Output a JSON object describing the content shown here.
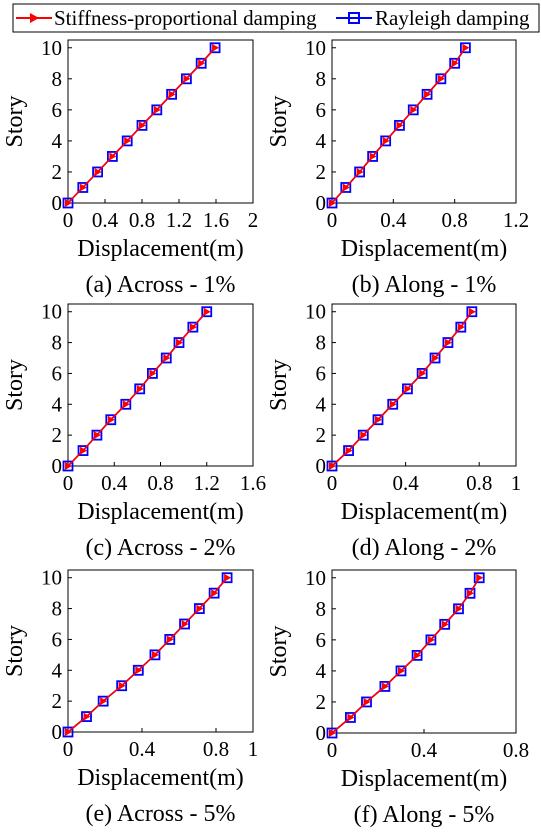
{
  "legend": {
    "entries": [
      {
        "label": "Stiffness-proportional damping",
        "color": "#ff0000",
        "marker": "right-triangle"
      },
      {
        "label": "Rayleigh damping",
        "color": "#0000ff",
        "marker": "square"
      }
    ],
    "placement": "top"
  },
  "chart_data": [
    {
      "type": "line",
      "caption": "(a) Across - 1%",
      "xlabel": "Displacement(m)",
      "ylabel": "Story",
      "xlim": [
        0,
        2
      ],
      "ylim": [
        0,
        10.5
      ],
      "xticks": [
        0,
        0.4,
        0.8,
        1.2,
        1.6,
        2
      ],
      "xticklabels": [
        "0",
        "0.4",
        "0.8",
        "1.2",
        "1.6",
        "2"
      ],
      "yticks": [
        0,
        2,
        4,
        6,
        8,
        10
      ],
      "yticklabels": [
        "0",
        "2",
        "4",
        "6",
        "8",
        "10"
      ],
      "grid": false,
      "series": [
        {
          "name": "Stiffness-proportional damping",
          "x": [
            0,
            0.16,
            0.32,
            0.48,
            0.64,
            0.8,
            0.96,
            1.12,
            1.28,
            1.44,
            1.59
          ],
          "y": [
            0,
            1,
            2,
            3,
            4,
            5,
            6,
            7,
            8,
            9,
            10
          ]
        },
        {
          "name": "Rayleigh damping",
          "x": [
            0,
            0.16,
            0.32,
            0.48,
            0.64,
            0.8,
            0.96,
            1.12,
            1.28,
            1.44,
            1.59
          ],
          "y": [
            0,
            1,
            2,
            3,
            4,
            5,
            6,
            7,
            8,
            9,
            10
          ]
        }
      ]
    },
    {
      "type": "line",
      "caption": "(b) Along - 1%",
      "xlabel": "Displacement(m)",
      "ylabel": "Story",
      "xlim": [
        0,
        1.2
      ],
      "ylim": [
        0,
        10.5
      ],
      "xticks": [
        0,
        0.4,
        0.8,
        1.2
      ],
      "xticklabels": [
        "0",
        "0.4",
        "0.8",
        "1.2"
      ],
      "yticks": [
        0,
        2,
        4,
        6,
        8,
        10
      ],
      "yticklabels": [
        "0",
        "2",
        "4",
        "6",
        "8",
        "10"
      ],
      "grid": false,
      "series": [
        {
          "name": "Stiffness-proportional damping",
          "x": [
            0,
            0.09,
            0.18,
            0.265,
            0.35,
            0.44,
            0.53,
            0.62,
            0.71,
            0.8,
            0.87
          ],
          "y": [
            0,
            1,
            2,
            3,
            4,
            5,
            6,
            7,
            8,
            9,
            10
          ]
        },
        {
          "name": "Rayleigh damping",
          "x": [
            0,
            0.09,
            0.18,
            0.265,
            0.35,
            0.44,
            0.53,
            0.62,
            0.71,
            0.8,
            0.87
          ],
          "y": [
            0,
            1,
            2,
            3,
            4,
            5,
            6,
            7,
            8,
            9,
            10
          ]
        }
      ]
    },
    {
      "type": "line",
      "caption": "(c) Across - 2%",
      "xlabel": "Displacement(m)",
      "ylabel": "Story",
      "xlim": [
        0,
        1.6
      ],
      "ylim": [
        0,
        10.5
      ],
      "xticks": [
        0,
        0.4,
        0.8,
        1.2,
        1.6
      ],
      "xticklabels": [
        "0",
        "0.4",
        "0.8",
        "1.2",
        "1.6"
      ],
      "yticks": [
        0,
        2,
        4,
        6,
        8,
        10
      ],
      "yticklabels": [
        "0",
        "2",
        "4",
        "6",
        "8",
        "10"
      ],
      "grid": false,
      "series": [
        {
          "name": "Stiffness-proportional damping",
          "x": [
            0,
            0.13,
            0.25,
            0.37,
            0.5,
            0.62,
            0.73,
            0.85,
            0.96,
            1.08,
            1.2
          ],
          "y": [
            0,
            1,
            2,
            3,
            4,
            5,
            6,
            7,
            8,
            9,
            10
          ]
        },
        {
          "name": "Rayleigh damping",
          "x": [
            0,
            0.13,
            0.25,
            0.37,
            0.5,
            0.62,
            0.73,
            0.85,
            0.96,
            1.08,
            1.2
          ],
          "y": [
            0,
            1,
            2,
            3,
            4,
            5,
            6,
            7,
            8,
            9,
            10
          ]
        }
      ]
    },
    {
      "type": "line",
      "caption": "(d) Along - 2%",
      "xlabel": "Displacement(m)",
      "ylabel": "Story",
      "xlim": [
        0,
        1
      ],
      "ylim": [
        0,
        10.5
      ],
      "xticks": [
        0,
        0.4,
        0.8,
        1
      ],
      "xticklabels": [
        "0",
        "0.4",
        "0.8",
        "1"
      ],
      "yticks": [
        0,
        2,
        4,
        6,
        8,
        10
      ],
      "yticklabels": [
        "0",
        "2",
        "4",
        "6",
        "8",
        "10"
      ],
      "grid": false,
      "series": [
        {
          "name": "Stiffness-proportional damping",
          "x": [
            0,
            0.09,
            0.17,
            0.25,
            0.33,
            0.41,
            0.49,
            0.56,
            0.63,
            0.7,
            0.76
          ],
          "y": [
            0,
            1,
            2,
            3,
            4,
            5,
            6,
            7,
            8,
            9,
            10
          ]
        },
        {
          "name": "Rayleigh damping",
          "x": [
            0,
            0.09,
            0.17,
            0.25,
            0.33,
            0.41,
            0.49,
            0.56,
            0.63,
            0.7,
            0.76
          ],
          "y": [
            0,
            1,
            2,
            3,
            4,
            5,
            6,
            7,
            8,
            9,
            10
          ]
        }
      ]
    },
    {
      "type": "line",
      "caption": "(e) Across - 5%",
      "xlabel": "Displacement(m)",
      "ylabel": "Story",
      "xlim": [
        0,
        1
      ],
      "ylim": [
        0,
        10.5
      ],
      "xticks": [
        0,
        0.4,
        0.8,
        1
      ],
      "xticklabels": [
        "0",
        "0.4",
        "0.8",
        "1"
      ],
      "yticks": [
        0,
        2,
        4,
        6,
        8,
        10
      ],
      "yticklabels": [
        "0",
        "2",
        "4",
        "6",
        "8",
        "10"
      ],
      "grid": false,
      "series": [
        {
          "name": "Stiffness-proportional damping",
          "x": [
            0,
            0.1,
            0.19,
            0.29,
            0.38,
            0.47,
            0.55,
            0.63,
            0.71,
            0.79,
            0.86
          ],
          "y": [
            0,
            1,
            2,
            3,
            4,
            5,
            6,
            7,
            8,
            9,
            10
          ]
        },
        {
          "name": "Rayleigh damping",
          "x": [
            0,
            0.1,
            0.19,
            0.29,
            0.38,
            0.47,
            0.55,
            0.63,
            0.71,
            0.79,
            0.86
          ],
          "y": [
            0,
            1,
            2,
            3,
            4,
            5,
            6,
            7,
            8,
            9,
            10
          ]
        }
      ]
    },
    {
      "type": "line",
      "caption": "(f) Along - 5%",
      "xlabel": "Displacement(m)",
      "ylabel": "Story",
      "xlim": [
        0,
        0.8
      ],
      "ylim": [
        0,
        10.5
      ],
      "xticks": [
        0,
        0.4,
        0.8
      ],
      "xticklabels": [
        "0",
        "0.4",
        "0.8"
      ],
      "yticks": [
        0,
        2,
        4,
        6,
        8,
        10
      ],
      "yticklabels": [
        "0",
        "2",
        "4",
        "6",
        "8",
        "10"
      ],
      "grid": false,
      "series": [
        {
          "name": "Stiffness-proportional damping",
          "x": [
            0,
            0.08,
            0.15,
            0.23,
            0.3,
            0.37,
            0.43,
            0.49,
            0.55,
            0.6,
            0.64
          ],
          "y": [
            0,
            1,
            2,
            3,
            4,
            5,
            6,
            7,
            8,
            9,
            10
          ]
        },
        {
          "name": "Rayleigh damping",
          "x": [
            0,
            0.08,
            0.15,
            0.23,
            0.3,
            0.37,
            0.43,
            0.49,
            0.55,
            0.6,
            0.64
          ],
          "y": [
            0,
            1,
            2,
            3,
            4,
            5,
            6,
            7,
            8,
            9,
            10
          ]
        }
      ]
    }
  ]
}
